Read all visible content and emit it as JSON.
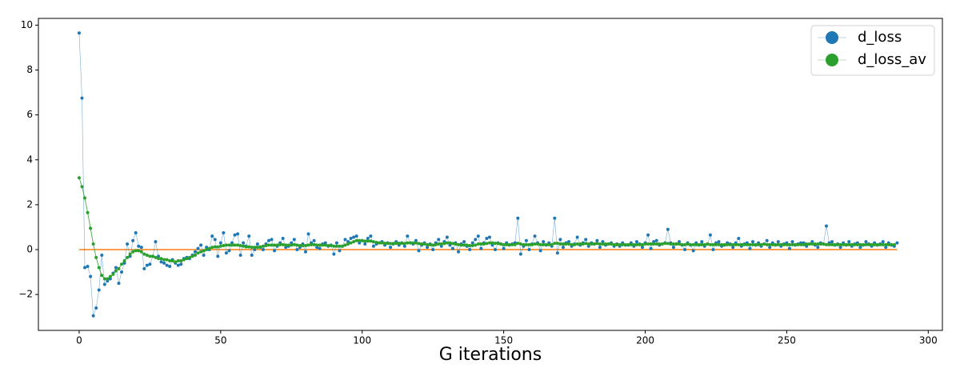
{
  "chart_data": {
    "type": "line",
    "x_label": "G iterations",
    "xlim": [
      -14.4,
      305
    ],
    "ylim": [
      -3.6,
      10.3
    ],
    "xticks": [
      0,
      50,
      100,
      150,
      200,
      250,
      300
    ],
    "yticks": [
      {
        "value": -2,
        "label": "−2"
      },
      0,
      2,
      4,
      6,
      8,
      10
    ],
    "legend": "upper right",
    "hline": {
      "y": 0,
      "color": "#ff7f0e"
    },
    "series": [
      {
        "name": "d_loss",
        "color": "#1f77b4",
        "values": [
          9.65,
          6.75,
          -0.8,
          -0.75,
          -1.2,
          -2.95,
          -2.6,
          -1.8,
          -0.25,
          -1.55,
          -1.4,
          -1.3,
          -1.05,
          -0.8,
          -1.5,
          -1.0,
          -0.6,
          0.25,
          -0.3,
          0.4,
          0.75,
          0.15,
          0.1,
          -0.85,
          -0.7,
          -0.65,
          -0.3,
          0.35,
          -0.3,
          -0.55,
          -0.6,
          -0.7,
          -0.75,
          -0.45,
          -0.6,
          -0.7,
          -0.65,
          -0.4,
          -0.35,
          -0.4,
          -0.25,
          -0.1,
          0.05,
          0.2,
          -0.25,
          0.1,
          0.0,
          0.6,
          0.45,
          -0.3,
          0.3,
          0.75,
          -0.15,
          -0.05,
          0.3,
          0.65,
          0.7,
          -0.25,
          0.3,
          0.15,
          0.6,
          -0.25,
          0.0,
          0.25,
          0.1,
          0.0,
          0.25,
          0.4,
          0.45,
          -0.05,
          0.15,
          0.3,
          0.5,
          0.1,
          0.15,
          0.3,
          0.45,
          0.0,
          0.1,
          0.25,
          -0.1,
          0.7,
          0.3,
          0.4,
          0.1,
          0.05,
          0.25,
          0.3,
          0.15,
          0.2,
          -0.2,
          0.3,
          -0.05,
          0.15,
          0.45,
          0.35,
          0.5,
          0.55,
          0.6,
          0.3,
          0.4,
          0.25,
          0.5,
          0.6,
          0.15,
          0.25,
          0.3,
          0.35,
          0.2,
          0.3,
          0.1,
          0.25,
          0.35,
          0.2,
          0.3,
          0.15,
          0.6,
          0.3,
          0.25,
          0.4,
          -0.05,
          0.2,
          0.3,
          0.1,
          0.25,
          0.0,
          0.3,
          0.45,
          0.15,
          0.35,
          0.55,
          0.2,
          0.05,
          0.3,
          -0.1,
          0.25,
          0.35,
          0.15,
          0.0,
          0.3,
          0.45,
          0.6,
          0.05,
          0.3,
          0.5,
          0.55,
          0.2,
          0.0,
          0.3,
          0.25,
          0.05,
          0.3,
          0.2,
          0.25,
          0.3,
          1.4,
          -0.2,
          0.15,
          0.4,
          0.0,
          0.25,
          0.6,
          0.3,
          -0.05,
          0.35,
          0.2,
          0.3,
          0.15,
          1.4,
          -0.15,
          0.45,
          0.1,
          0.3,
          0.35,
          0.15,
          0.25,
          0.55,
          0.2,
          0.3,
          0.45,
          0.15,
          0.3,
          0.25,
          0.4,
          0.1,
          0.35,
          0.2,
          0.25,
          0.3,
          0.15,
          0.25,
          0.15,
          0.3,
          0.2,
          0.2,
          0.3,
          0.15,
          0.35,
          0.25,
          0.1,
          0.3,
          0.65,
          0.05,
          0.35,
          0.4,
          0.2,
          0.25,
          0.3,
          0.9,
          0.3,
          0.1,
          0.25,
          0.35,
          0.2,
          0.0,
          0.3,
          0.2,
          -0.05,
          0.3,
          0.2,
          0.35,
          0.15,
          0.25,
          0.65,
          0.0,
          0.3,
          0.35,
          0.15,
          0.2,
          0.3,
          0.25,
          0.1,
          0.3,
          0.5,
          0.15,
          0.25,
          0.3,
          0.05,
          0.35,
          0.2,
          0.3,
          0.15,
          0.25,
          0.4,
          0.1,
          0.3,
          0.2,
          0.35,
          0.15,
          0.25,
          0.3,
          0.05,
          0.35,
          0.2,
          0.25,
          0.3,
          0.3,
          0.15,
          0.25,
          0.35,
          0.2,
          0.1,
          0.3,
          0.25,
          1.05,
          0.3,
          0.35,
          0.2,
          0.25,
          0.1,
          0.3,
          0.2,
          0.35,
          0.15,
          0.25,
          0.3,
          0.1,
          0.2,
          0.35,
          0.25,
          0.15,
          0.3,
          0.2,
          0.25,
          0.35,
          0.1,
          0.3,
          0.2,
          0.15,
          0.3
        ]
      },
      {
        "name": "d_loss_av",
        "color": "#2ca02c",
        "values": [
          3.2,
          2.8,
          2.3,
          1.65,
          0.95,
          0.25,
          -0.35,
          -0.8,
          -1.15,
          -1.3,
          -1.3,
          -1.2,
          -1.1,
          -0.95,
          -0.85,
          -0.65,
          -0.5,
          -0.35,
          -0.2,
          -0.1,
          -0.05,
          -0.05,
          -0.1,
          -0.2,
          -0.25,
          -0.3,
          -0.3,
          -0.35,
          -0.4,
          -0.4,
          -0.45,
          -0.45,
          -0.5,
          -0.5,
          -0.55,
          -0.5,
          -0.5,
          -0.45,
          -0.4,
          -0.35,
          -0.3,
          -0.25,
          -0.15,
          -0.1,
          -0.05,
          0.0,
          0.05,
          0.1,
          0.12,
          0.12,
          0.15,
          0.18,
          0.2,
          0.2,
          0.2,
          0.2,
          0.2,
          0.18,
          0.15,
          0.12,
          0.12,
          0.1,
          0.1,
          0.1,
          0.12,
          0.15,
          0.18,
          0.2,
          0.2,
          0.2,
          0.2,
          0.22,
          0.22,
          0.2,
          0.2,
          0.2,
          0.22,
          0.2,
          0.18,
          0.18,
          0.18,
          0.2,
          0.22,
          0.22,
          0.2,
          0.2,
          0.2,
          0.2,
          0.18,
          0.18,
          0.15,
          0.15,
          0.15,
          0.15,
          0.2,
          0.25,
          0.3,
          0.35,
          0.4,
          0.4,
          0.4,
          0.38,
          0.38,
          0.38,
          0.35,
          0.32,
          0.3,
          0.3,
          0.28,
          0.28,
          0.27,
          0.27,
          0.28,
          0.28,
          0.28,
          0.27,
          0.3,
          0.3,
          0.3,
          0.3,
          0.27,
          0.25,
          0.25,
          0.22,
          0.22,
          0.2,
          0.22,
          0.25,
          0.25,
          0.27,
          0.3,
          0.3,
          0.27,
          0.25,
          0.22,
          0.2,
          0.2,
          0.2,
          0.18,
          0.18,
          0.2,
          0.25,
          0.25,
          0.25,
          0.27,
          0.3,
          0.3,
          0.28,
          0.27,
          0.25,
          0.22,
          0.22,
          0.22,
          0.22,
          0.22,
          0.28,
          0.25,
          0.22,
          0.22,
          0.22,
          0.22,
          0.25,
          0.25,
          0.22,
          0.22,
          0.22,
          0.22,
          0.22,
          0.28,
          0.28,
          0.25,
          0.25,
          0.25,
          0.25,
          0.22,
          0.22,
          0.25,
          0.25,
          0.25,
          0.27,
          0.25,
          0.25,
          0.25,
          0.27,
          0.25,
          0.25,
          0.25,
          0.25,
          0.25,
          0.22,
          0.22,
          0.22,
          0.22,
          0.22,
          0.22,
          0.22,
          0.22,
          0.22,
          0.22,
          0.22,
          0.25,
          0.25,
          0.25,
          0.25,
          0.25,
          0.25,
          0.25,
          0.28,
          0.27,
          0.25,
          0.25,
          0.25,
          0.25,
          0.22,
          0.22,
          0.25,
          0.22,
          0.22,
          0.22,
          0.22,
          0.22,
          0.22,
          0.25,
          0.22,
          0.22,
          0.22,
          0.22,
          0.22,
          0.22,
          0.22,
          0.22,
          0.22,
          0.22,
          0.22,
          0.22,
          0.22,
          0.22,
          0.22,
          0.22,
          0.22,
          0.22,
          0.22,
          0.25,
          0.22,
          0.22,
          0.22,
          0.22,
          0.22,
          0.22,
          0.22,
          0.22,
          0.22,
          0.22,
          0.22,
          0.22,
          0.22,
          0.22,
          0.25,
          0.25,
          0.25,
          0.25,
          0.25,
          0.25,
          0.25,
          0.22,
          0.22,
          0.22,
          0.22,
          0.22,
          0.22,
          0.22,
          0.22,
          0.22,
          0.22,
          0.22,
          0.22,
          0.22,
          0.22,
          0.22,
          0.22,
          0.22,
          0.22,
          0.22,
          0.22,
          0.22,
          0.22,
          0.22,
          0.22,
          0.22
        ]
      }
    ]
  }
}
